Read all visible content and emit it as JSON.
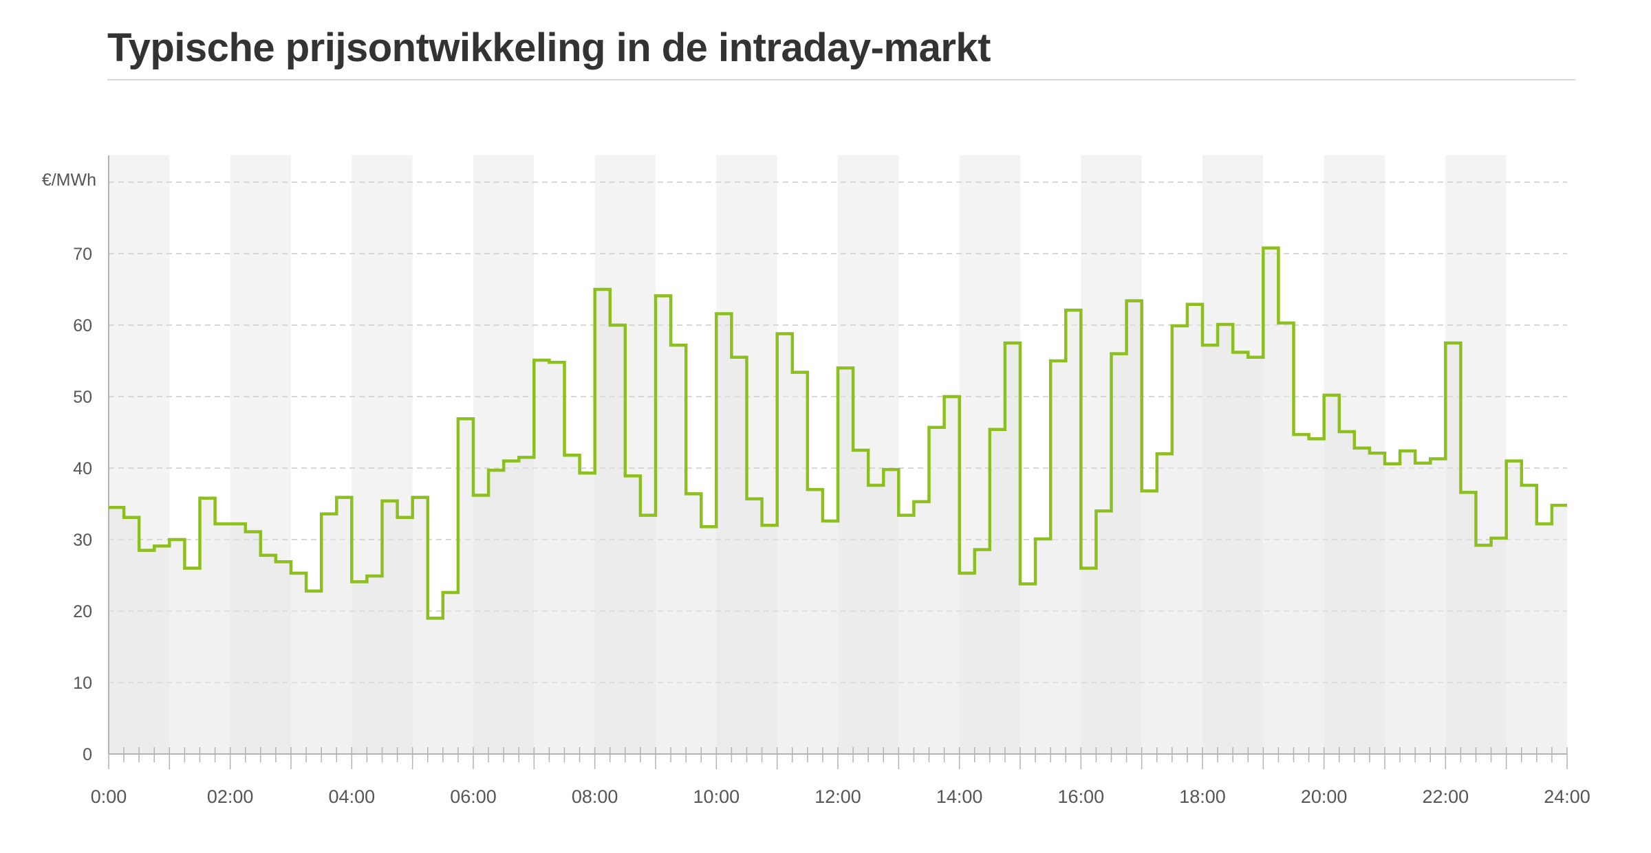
{
  "title": "Typische prijsontwikkeling in de intraday-markt",
  "colors": {
    "line": "#8cbf1f",
    "area": "#e6e6e6",
    "band": "#f3f3f3",
    "grid": "#cccccc",
    "axis": "#b3b3b3"
  },
  "chart_data": {
    "type": "line",
    "step": true,
    "ylabel": "€/MWh",
    "ylim": [
      0,
      80
    ],
    "yticks": [
      0,
      10,
      20,
      30,
      40,
      50,
      60,
      70
    ],
    "xlim": [
      0,
      24
    ],
    "xtick_labels": [
      "0:00",
      "02:00",
      "04:00",
      "06:00",
      "08:00",
      "10:00",
      "12:00",
      "14:00",
      "16:00",
      "18:00",
      "20:00",
      "22:00",
      "24:00"
    ],
    "interval_hours": 0.25,
    "grid": true,
    "values": [
      34.5,
      33.1,
      28.5,
      29.1,
      30.0,
      26.0,
      35.8,
      32.2,
      32.2,
      31.1,
      27.8,
      26.9,
      25.3,
      22.8,
      33.6,
      35.9,
      24.1,
      24.9,
      35.4,
      33.1,
      35.9,
      19.0,
      22.6,
      46.9,
      36.2,
      39.7,
      41.0,
      41.5,
      55.1,
      54.8,
      41.8,
      39.3,
      65.0,
      60.0,
      38.9,
      33.4,
      64.1,
      57.2,
      36.4,
      31.8,
      61.6,
      55.5,
      35.7,
      32.0,
      58.8,
      53.4,
      37.0,
      32.6,
      54.0,
      42.5,
      37.6,
      39.8,
      33.4,
      35.3,
      45.7,
      50.0,
      25.3,
      28.6,
      45.4,
      57.5,
      23.8,
      30.1,
      55.0,
      62.1,
      26.0,
      34.0,
      56.0,
      63.4,
      36.8,
      42.0,
      59.9,
      62.9,
      57.2,
      60.1,
      56.2,
      55.5,
      70.8,
      60.3,
      44.7,
      44.1,
      50.2,
      45.1,
      42.8,
      42.1,
      40.6,
      42.4,
      40.7,
      41.3,
      57.5,
      36.6,
      29.2,
      30.2,
      41.0,
      37.6,
      32.2,
      34.8
    ]
  }
}
